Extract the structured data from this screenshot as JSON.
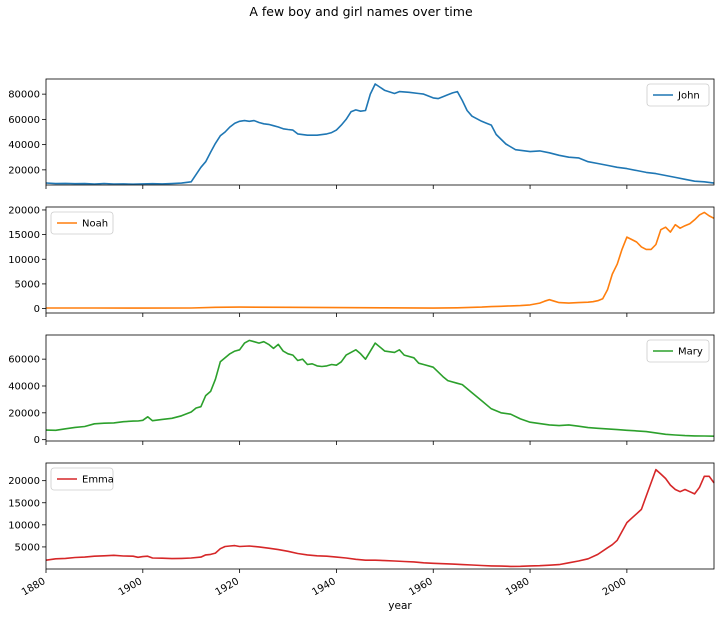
{
  "figure": {
    "title": "A few boy and girl names over time"
  },
  "chart_data": {
    "type": "line",
    "title": "A few boy and girl names over time",
    "xlabel": "year",
    "xlim": [
      1880,
      2018
    ],
    "x_ticks": [
      1880,
      1900,
      1920,
      1940,
      1960,
      1980,
      2000
    ],
    "shared_x": true,
    "legend_placement": [
      "top-right",
      "top-left",
      "top-right",
      "top-left"
    ],
    "panels": [
      {
        "name": "John",
        "color": "#1f77b4",
        "ylim": [
          8000,
          92000
        ],
        "y_ticks": [
          20000,
          40000,
          60000,
          80000
        ],
        "legend": "upper right",
        "x": [
          1880,
          1882,
          1884,
          1886,
          1888,
          1890,
          1892,
          1894,
          1896,
          1898,
          1900,
          1902,
          1904,
          1906,
          1908,
          1910,
          1912,
          1913,
          1914,
          1915,
          1916,
          1917,
          1918,
          1919,
          1920,
          1921,
          1922,
          1923,
          1924,
          1925,
          1926,
          1927,
          1928,
          1929,
          1930,
          1931,
          1932,
          1934,
          1936,
          1938,
          1939,
          1940,
          1941,
          1942,
          1943,
          1944,
          1945,
          1946,
          1947,
          1948,
          1950,
          1952,
          1953,
          1955,
          1957,
          1958,
          1960,
          1961,
          1962,
          1963,
          1964,
          1965,
          1966,
          1967,
          1968,
          1970,
          1971,
          1972,
          1973,
          1975,
          1977,
          1980,
          1982,
          1984,
          1986,
          1988,
          1990,
          1992,
          1994,
          1996,
          1998,
          2000,
          2002,
          2004,
          2006,
          2008,
          2010,
          2012,
          2014,
          2016,
          2018
        ],
        "values": [
          9600,
          9100,
          9300,
          9000,
          9100,
          8700,
          9200,
          8800,
          8900,
          8600,
          8900,
          9000,
          8900,
          9100,
          9500,
          10500,
          22000,
          26500,
          34000,
          41000,
          47000,
          50000,
          54000,
          57000,
          58500,
          59000,
          58500,
          59000,
          57500,
          56500,
          56000,
          55000,
          54000,
          52500,
          52000,
          51500,
          48500,
          47500,
          47500,
          48500,
          49500,
          51500,
          55500,
          60000,
          66000,
          67500,
          66500,
          67000,
          80000,
          88000,
          83000,
          80500,
          82000,
          81500,
          80500,
          80000,
          77000,
          76500,
          78000,
          79500,
          81000,
          82000,
          75000,
          67000,
          62500,
          58500,
          57000,
          55500,
          48000,
          40500,
          36000,
          34500,
          35000,
          33500,
          31500,
          30000,
          29500,
          26500,
          25000,
          23500,
          22000,
          21000,
          19500,
          18000,
          17000,
          15500,
          14000,
          12500,
          11000,
          10500,
          9500
        ]
      },
      {
        "name": "Noah",
        "color": "#ff7f0e",
        "ylim": [
          -900,
          20600
        ],
        "y_ticks": [
          0,
          5000,
          10000,
          15000,
          20000
        ],
        "legend": "upper left",
        "x": [
          1880,
          1890,
          1900,
          1910,
          1915,
          1920,
          1930,
          1940,
          1950,
          1960,
          1965,
          1970,
          1972,
          1974,
          1976,
          1978,
          1980,
          1982,
          1983,
          1984,
          1985,
          1986,
          1988,
          1990,
          1992,
          1993,
          1994,
          1995,
          1996,
          1997,
          1998,
          1999,
          2000,
          2001,
          2002,
          2003,
          2004,
          2005,
          2006,
          2007,
          2008,
          2009,
          2010,
          2011,
          2012,
          2013,
          2014,
          2015,
          2016,
          2017,
          2018
        ],
        "values": [
          120,
          110,
          100,
          110,
          250,
          300,
          250,
          200,
          150,
          100,
          150,
          300,
          400,
          450,
          550,
          600,
          750,
          1100,
          1500,
          1800,
          1500,
          1200,
          1100,
          1200,
          1300,
          1400,
          1600,
          2000,
          3800,
          7000,
          9000,
          12000,
          14500,
          14000,
          13500,
          12500,
          12000,
          12000,
          13000,
          16000,
          16500,
          15500,
          17000,
          16300,
          16800,
          17200,
          18000,
          19000,
          19500,
          18800,
          18300
        ]
      },
      {
        "name": "Mary",
        "color": "#2ca02c",
        "ylim": [
          -1000,
          78000
        ],
        "y_ticks": [
          0,
          20000,
          40000,
          60000
        ],
        "legend": "upper right",
        "x": [
          1880,
          1882,
          1884,
          1886,
          1888,
          1890,
          1892,
          1894,
          1896,
          1898,
          1899,
          1900,
          1901,
          1902,
          1904,
          1906,
          1908,
          1910,
          1911,
          1912,
          1913,
          1914,
          1915,
          1916,
          1917,
          1918,
          1919,
          1920,
          1921,
          1922,
          1923,
          1924,
          1925,
          1926,
          1927,
          1928,
          1929,
          1930,
          1931,
          1932,
          1933,
          1934,
          1935,
          1936,
          1937,
          1938,
          1939,
          1940,
          1941,
          1942,
          1944,
          1945,
          1946,
          1948,
          1950,
          1952,
          1953,
          1954,
          1956,
          1957,
          1958,
          1960,
          1962,
          1963,
          1965,
          1966,
          1968,
          1970,
          1972,
          1974,
          1976,
          1978,
          1980,
          1982,
          1984,
          1986,
          1988,
          1990,
          1992,
          1994,
          1996,
          1998,
          2000,
          2002,
          2004,
          2006,
          2008,
          2010,
          2012,
          2014,
          2016,
          2018
        ],
        "values": [
          7100,
          7000,
          8100,
          9100,
          9800,
          11800,
          12300,
          12500,
          13400,
          13800,
          13900,
          14400,
          17000,
          14100,
          15100,
          15900,
          17800,
          20600,
          23600,
          24600,
          32800,
          36000,
          45000,
          58000,
          61000,
          64000,
          66000,
          67000,
          72000,
          74000,
          73000,
          72000,
          73000,
          71000,
          68000,
          71000,
          66000,
          64000,
          63000,
          59000,
          60000,
          56000,
          56500,
          55000,
          54500,
          55000,
          56000,
          55500,
          58000,
          63000,
          67000,
          64000,
          60000,
          72000,
          66000,
          65000,
          67000,
          63000,
          61000,
          57000,
          56000,
          54000,
          47000,
          44000,
          42000,
          41000,
          35000,
          29000,
          23000,
          20000,
          19000,
          15500,
          13000,
          12000,
          11000,
          10500,
          11000,
          10000,
          9000,
          8500,
          8000,
          7500,
          7000,
          6500,
          6000,
          5000,
          4000,
          3500,
          3000,
          2800,
          2700,
          2600
        ]
      },
      {
        "name": "Emma",
        "color": "#d62728",
        "ylim": [
          0,
          24000
        ],
        "y_ticks": [
          5000,
          10000,
          15000,
          20000
        ],
        "legend": "upper left",
        "x": [
          1880,
          1882,
          1884,
          1886,
          1888,
          1890,
          1892,
          1894,
          1896,
          1898,
          1899,
          1900,
          1901,
          1902,
          1904,
          1906,
          1908,
          1910,
          1912,
          1913,
          1914,
          1915,
          1916,
          1917,
          1918,
          1919,
          1920,
          1922,
          1924,
          1926,
          1928,
          1930,
          1932,
          1934,
          1936,
          1938,
          1940,
          1942,
          1944,
          1946,
          1948,
          1950,
          1952,
          1954,
          1956,
          1958,
          1960,
          1962,
          1964,
          1966,
          1968,
          1970,
          1972,
          1974,
          1976,
          1978,
          1980,
          1982,
          1984,
          1986,
          1988,
          1990,
          1992,
          1994,
          1996,
          1997,
          1998,
          1999,
          2000,
          2001,
          2002,
          2003,
          2004,
          2006,
          2007,
          2008,
          2009,
          2010,
          2011,
          2012,
          2013,
          2014,
          2015,
          2016,
          2017,
          2018
        ],
        "values": [
          2000,
          2300,
          2400,
          2600,
          2700,
          2900,
          3000,
          3100,
          2950,
          2900,
          2650,
          2800,
          2900,
          2500,
          2450,
          2350,
          2400,
          2500,
          2700,
          3200,
          3300,
          3600,
          4600,
          5100,
          5200,
          5300,
          5100,
          5200,
          5000,
          4700,
          4400,
          4000,
          3500,
          3200,
          3000,
          2900,
          2700,
          2500,
          2200,
          2000,
          2000,
          1900,
          1800,
          1700,
          1600,
          1400,
          1300,
          1200,
          1100,
          1000,
          900,
          800,
          700,
          650,
          600,
          620,
          700,
          750,
          850,
          1000,
          1400,
          1800,
          2300,
          3300,
          4800,
          5500,
          6500,
          8500,
          10500,
          11500,
          12500,
          13500,
          16500,
          22500,
          21500,
          20500,
          19000,
          18000,
          17500,
          18000,
          17500,
          17000,
          18500,
          21000,
          21000,
          19500
        ]
      }
    ]
  }
}
